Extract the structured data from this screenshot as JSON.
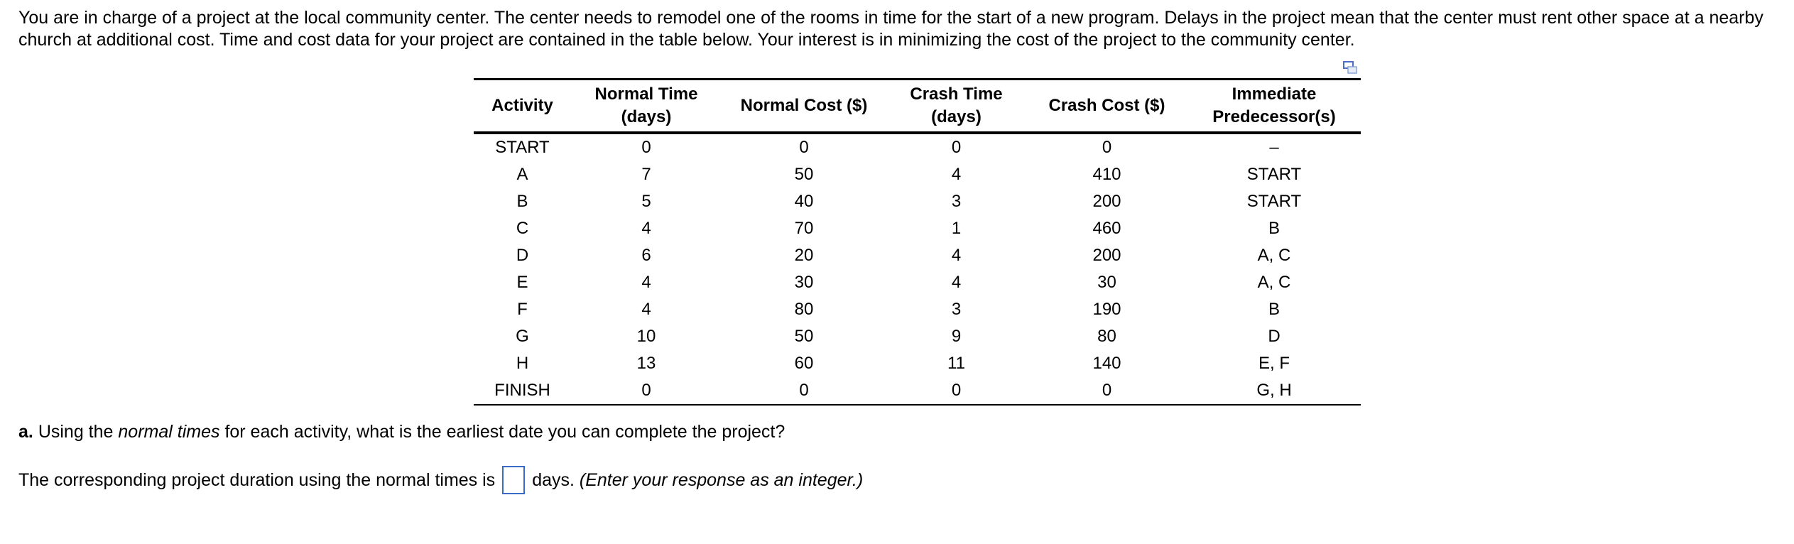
{
  "intro": "You are in charge of a project at the local community center. The center needs to remodel one of the rooms in time for the start of a new program. Delays in the project mean that the center must rent other space at a nearby church at additional cost. Time and cost data for your project are contained in the table below. Your interest is in minimizing the cost of the project to the community center.",
  "copy_icon": "copy-table-icon",
  "table": {
    "headers": [
      "Activity",
      "Normal Time (days)",
      "Normal Cost ($)",
      "Crash Time (days)",
      "Crash Cost ($)",
      "Immediate Predecessor(s)"
    ],
    "rows": [
      [
        "START",
        "0",
        "0",
        "0",
        "0",
        "–"
      ],
      [
        "A",
        "7",
        "50",
        "4",
        "410",
        "START"
      ],
      [
        "B",
        "5",
        "40",
        "3",
        "200",
        "START"
      ],
      [
        "C",
        "4",
        "70",
        "1",
        "460",
        "B"
      ],
      [
        "D",
        "6",
        "20",
        "4",
        "200",
        "A, C"
      ],
      [
        "E",
        "4",
        "30",
        "4",
        "30",
        "A, C"
      ],
      [
        "F",
        "4",
        "80",
        "3",
        "190",
        "B"
      ],
      [
        "G",
        "10",
        "50",
        "9",
        "80",
        "D"
      ],
      [
        "H",
        "13",
        "60",
        "11",
        "140",
        "E, F"
      ],
      [
        "FINISH",
        "0",
        "0",
        "0",
        "0",
        "G, H"
      ]
    ]
  },
  "question": {
    "label": "a.",
    "pre": "Using the",
    "emph": "normal times",
    "post": "for each activity, what is the earliest date you can complete the project?"
  },
  "answer": {
    "pre": "The corresponding project duration using the normal times is",
    "value": "",
    "post": "days.",
    "hint": "(Enter your response as an integer.)"
  }
}
